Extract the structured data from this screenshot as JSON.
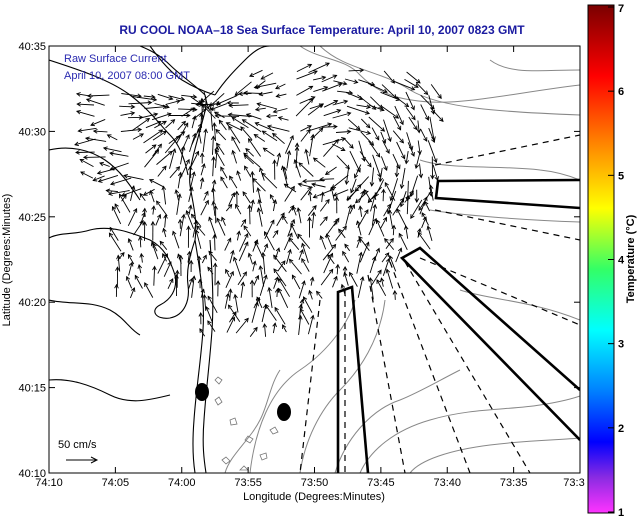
{
  "title": "RU COOL  NOAA–18  Sea Surface Temperature:  April 10, 2007 0823 GMT",
  "legend": {
    "line1": "Raw Surface Current",
    "line2": "April 10, 2007 08:00 GMT"
  },
  "x_axis": {
    "label": "Longitude (Degrees:Minutes)",
    "ticks": [
      "74:10",
      "74:05",
      "74:00",
      "73:55",
      "73:50",
      "73:45",
      "73:40",
      "73:35",
      "73:3"
    ]
  },
  "y_axis": {
    "label": "Latitude (Degrees:Minutes)",
    "ticks": [
      "40:35",
      "40:30",
      "40:25",
      "40:20",
      "40:15",
      "40:10"
    ]
  },
  "colorbar": {
    "label": "Temperature (°C)",
    "ticks": [
      "7",
      "6",
      "5",
      "4",
      "3",
      "2",
      "1"
    ],
    "colors": [
      "#8b0000",
      "#ff0000",
      "#ff8800",
      "#ffff00",
      "#00ff88",
      "#00ffff",
      "#0088ff",
      "#0000ff",
      "#8800ff",
      "#ff00ff"
    ]
  },
  "scale_bar": {
    "label": "50 cm/s"
  },
  "map_colors": {
    "coastline": "#000000",
    "bathymetry": "#888888",
    "vectors": "#000000"
  }
}
